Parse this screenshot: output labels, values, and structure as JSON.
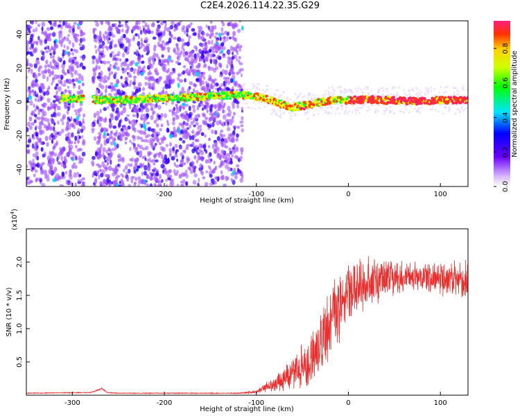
{
  "title": "C2E4.2026.114.22.35.G29",
  "colors": {
    "spectrogram_scatter": "#7a2cff",
    "snr_line": "#e83030",
    "axis": "#000000"
  },
  "chart_data": [
    {
      "type": "heatmap",
      "name": "spectrogram",
      "xlabel": "Height of straight line (km)",
      "ylabel": "Frequency (Hz)",
      "xlim": [
        -350,
        130
      ],
      "ylim": [
        -50,
        48
      ],
      "xticks": [
        -300,
        -200,
        -100,
        0,
        100
      ],
      "yticks": [
        -40,
        -20,
        0,
        20,
        40
      ],
      "grid": false,
      "ridge": {
        "x": [
          -310,
          -280,
          -250,
          -220,
          -190,
          -160,
          -130,
          -110,
          -90,
          -75,
          -60,
          -45,
          -30,
          -15,
          0,
          20,
          40,
          60,
          80,
          100,
          128
        ],
        "y": [
          2,
          1.5,
          1,
          2,
          2.5,
          3,
          4,
          4,
          2,
          -1,
          -3,
          -2,
          0,
          1,
          1,
          1.5,
          1,
          0.5,
          0.5,
          1,
          1
        ]
      },
      "colorbar": {
        "label": "Normalized spectral amplitude",
        "ticks": [
          "0.0",
          "0.2",
          "0.4",
          "0.6",
          "0.8"
        ],
        "range": [
          0,
          0.96
        ]
      }
    },
    {
      "type": "line",
      "name": "snr",
      "xlabel": "Height of straight line (km)",
      "ylabel": "SNR (10 * v/v)",
      "multiplier_label": "(x10",
      "multiplier_exp": "4",
      "multiplier_close": ")",
      "xlim": [
        -350,
        130
      ],
      "ylim": [
        0,
        2.5
      ],
      "xticks": [
        -300,
        -200,
        -100,
        0,
        100
      ],
      "yticks": [
        "0.5",
        "1.0",
        "1.5",
        "2.0"
      ],
      "grid": false,
      "envelope": {
        "x": [
          -350,
          -280,
          -268,
          -262,
          -250,
          -120,
          -100,
          -85,
          -70,
          -55,
          -40,
          -25,
          -15,
          0,
          20,
          40,
          60,
          80,
          100,
          128
        ],
        "mean": [
          0.03,
          0.04,
          0.1,
          0.04,
          0.03,
          0.03,
          0.05,
          0.15,
          0.25,
          0.35,
          0.55,
          0.9,
          1.2,
          1.55,
          1.7,
          1.75,
          1.78,
          1.8,
          1.75,
          1.7
        ],
        "spread": [
          0.005,
          0.006,
          0.01,
          0.006,
          0.005,
          0.006,
          0.02,
          0.08,
          0.15,
          0.25,
          0.35,
          0.45,
          0.45,
          0.35,
          0.3,
          0.25,
          0.2,
          0.2,
          0.22,
          0.25
        ]
      }
    }
  ],
  "text": {
    "spec_y_label": "Frequency (Hz)",
    "spec_x_label": "Height of straight line (km)",
    "snr_x_label": "Height of straight line (km)",
    "snr_y_label": "SNR (10 * v/v)",
    "colorbar_label": "Normalized spectral amplitude"
  }
}
